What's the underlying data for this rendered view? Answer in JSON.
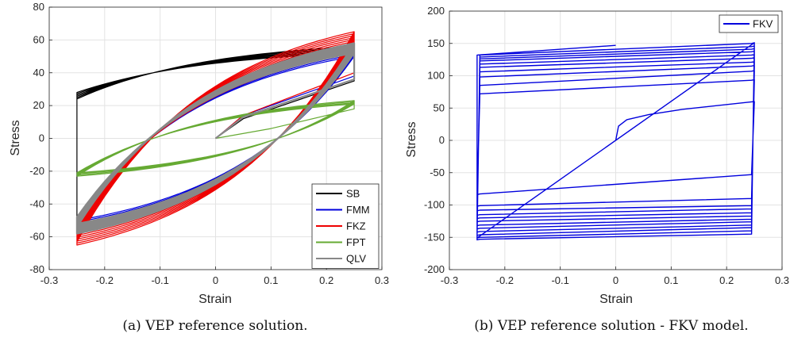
{
  "chart_data": [
    {
      "type": "line",
      "caption": "(a) VEP reference solution.",
      "xlabel": "Strain",
      "ylabel": "Stress",
      "xlim": [
        -0.3,
        0.3
      ],
      "ylim": [
        -80,
        80
      ],
      "xticks": [
        "-0.3",
        "-0.2",
        "-0.1",
        "0",
        "0.1",
        "0.2",
        "0.3"
      ],
      "yticks": [
        "-80",
        "-60",
        "-40",
        "-20",
        "0",
        "20",
        "40",
        "60",
        "80"
      ],
      "grid": true,
      "legend_position": "bottom-right",
      "series": [
        {
          "name": "SB",
          "color": "#000000",
          "amp": 0.25,
          "cycles": 6,
          "upper_start": [
            0.0,
            28
          ],
          "upper_end": [
            0.25,
            52
          ],
          "upper_k": 2.4,
          "lower_start": [
            -0.25,
            -55
          ],
          "lower_end": [
            0.25,
            48
          ],
          "lower_k": 1.35,
          "growth": 4,
          "init": [
            [
              0,
              0
            ],
            [
              0.05,
              12
            ],
            [
              0.25,
              35
            ]
          ]
        },
        {
          "name": "FMM",
          "color": "#0000dd",
          "amp": 0.25,
          "cycles": 6,
          "upper_start": [
            -0.25,
            -48
          ],
          "upper_end": [
            0.25,
            50
          ],
          "upper_k": 0.45,
          "lower_start": [
            0.25,
            52
          ],
          "lower_end": [
            -0.25,
            -52
          ],
          "lower_k": 0.45,
          "growth": 5,
          "init": [
            [
              0,
              0
            ],
            [
              0.05,
              14
            ],
            [
              0.25,
              38
            ]
          ]
        },
        {
          "name": "FKZ",
          "color": "#ee0000",
          "amp": 0.25,
          "cycles": 12,
          "upper_start": [
            -0.25,
            -50
          ],
          "upper_end": [
            0.25,
            52
          ],
          "upper_k": 0.32,
          "lower_start": [
            0.25,
            52
          ],
          "lower_end": [
            -0.25,
            -52
          ],
          "lower_k": 0.32,
          "growth": 13,
          "init": [
            [
              0,
              0
            ],
            [
              0.05,
              14
            ],
            [
              0.25,
              40
            ]
          ]
        },
        {
          "name": "FPT",
          "color": "#66aa33",
          "amp": 0.25,
          "cycles": 4,
          "upper_start": [
            -0.25,
            -21
          ],
          "upper_end": [
            0.25,
            21
          ],
          "upper_k": 0.9,
          "lower_start": [
            0.25,
            19
          ],
          "lower_end": [
            -0.25,
            -21
          ],
          "lower_k": 0.9,
          "growth": 2,
          "init": [
            [
              0,
              0
            ],
            [
              0.1,
              6
            ],
            [
              0.25,
              18
            ]
          ]
        },
        {
          "name": "QLV",
          "color": "#888888",
          "amp": 0.25,
          "cycles": 10,
          "upper_start": [
            -0.25,
            -48
          ],
          "upper_end": [
            0.25,
            52
          ],
          "upper_k": 0.4,
          "lower_start": [
            0.25,
            52
          ],
          "lower_end": [
            -0.25,
            -48
          ],
          "lower_k": 0.4,
          "growth": 6,
          "init": [
            [
              0,
              0
            ],
            [
              0.05,
              13
            ],
            [
              0.25,
              36
            ]
          ]
        }
      ]
    },
    {
      "type": "line",
      "caption": "(b) VEP reference solution - FKV model.",
      "xlabel": "Strain",
      "ylabel": "Stress",
      "xlim": [
        -0.3,
        0.3
      ],
      "ylim": [
        -200,
        200
      ],
      "xticks": [
        "-0.3",
        "-0.2",
        "-0.1",
        "0",
        "0.1",
        "0.2",
        "0.3"
      ],
      "yticks": [
        "-200",
        "-150",
        "-100",
        "-50",
        "0",
        "50",
        "100",
        "150",
        "200"
      ],
      "grid": true,
      "legend_position": "top-right",
      "series": [
        {
          "name": "FKV",
          "color": "#0000dd",
          "initial_curve": [
            [
              0,
              0
            ],
            [
              0.005,
              22
            ],
            [
              0.02,
              32
            ],
            [
              0.06,
              40
            ],
            [
              0.12,
              48
            ],
            [
              0.25,
              60
            ]
          ],
          "downward_plateaus": [
            [
              -53,
              -83
            ],
            [
              -90,
              -101
            ],
            [
              -101,
              -108
            ],
            [
              -106,
              -115
            ],
            [
              -112,
              -120
            ],
            [
              -117,
              -125
            ],
            [
              -122,
              -131
            ],
            [
              -126,
              -136
            ],
            [
              -131,
              -141
            ],
            [
              -135,
              -146
            ],
            [
              -140,
              -150
            ],
            [
              -145,
              -153
            ]
          ],
          "upward_plateaus": [
            [
              72,
              93
            ],
            [
              85,
              107
            ],
            [
              98,
              115
            ],
            [
              106,
              121
            ],
            [
              113,
              127
            ],
            [
              118,
              132
            ],
            [
              123,
              137
            ],
            [
              126,
              141
            ],
            [
              129,
              145
            ],
            [
              132,
              150
            ]
          ],
          "final_segment": [
            [
              -0.25,
              132
            ],
            [
              0,
              147
            ]
          ]
        }
      ]
    }
  ]
}
